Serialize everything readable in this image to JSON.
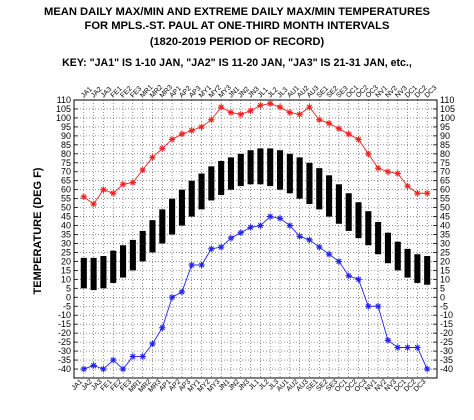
{
  "chart_data": {
    "type": "line",
    "title_lines": [
      "MEAN DAILY MAX/MIN AND EXTREME DAILY MAX/MIN TEMPERATURES",
      "FOR MPLS.-ST. PAUL AT ONE-THIRD MONTH INTERVALS",
      "(1820-2019 PERIOD OF RECORD)"
    ],
    "key_line": "KEY: \"JA1\" IS 1-10 JAN, \"JA2\" IS 11-20 JAN, \"JA3\" IS 21-31 JAN, etc.,",
    "ylabel": "TEMPERATURE (DEG F)",
    "ylim": [
      -45,
      110
    ],
    "yticks": [
      -40,
      -35,
      -30,
      -25,
      -20,
      -15,
      -10,
      -5,
      0,
      5,
      10,
      15,
      20,
      25,
      30,
      35,
      40,
      45,
      50,
      55,
      60,
      65,
      70,
      75,
      80,
      85,
      90,
      95,
      100,
      105,
      110
    ],
    "grid": true,
    "categories": [
      "JA1",
      "JA2",
      "JA3",
      "FE1",
      "FE2",
      "FE3",
      "MR1",
      "MR2",
      "MR3",
      "AP1",
      "AP2",
      "AP3",
      "MY1",
      "MY2",
      "MY3",
      "JN1",
      "JN2",
      "JN3",
      "JL1",
      "JL2",
      "JL3",
      "AU1",
      "AU2",
      "AU3",
      "SE1",
      "SE2",
      "SE3",
      "OC1",
      "OC2",
      "OC3",
      "NV1",
      "NV2",
      "NV3",
      "DC1",
      "DC2",
      "DC3"
    ],
    "series": [
      {
        "kind": "extreme-max",
        "color": "#ee2222",
        "values": [
          56,
          52,
          60,
          58,
          63,
          64,
          71,
          78,
          83,
          88,
          91,
          93,
          95,
          99,
          106,
          103,
          102,
          104,
          107,
          108,
          106,
          103,
          102,
          106,
          99,
          97,
          94,
          91,
          88,
          80,
          72,
          70,
          69,
          62,
          58,
          58
        ]
      },
      {
        "kind": "mean-max",
        "color": "#000000",
        "values": [
          22,
          22,
          23,
          26,
          29,
          32,
          37,
          43,
          49,
          55,
          60,
          65,
          69,
          73,
          76,
          78,
          80,
          82,
          83,
          83,
          82,
          80,
          78,
          75,
          72,
          68,
          63,
          58,
          53,
          48,
          42,
          36,
          31,
          27,
          24,
          23
        ]
      },
      {
        "kind": "mean-min",
        "color": "#000000",
        "values": [
          5,
          4,
          5,
          8,
          11,
          15,
          20,
          25,
          30,
          35,
          40,
          45,
          49,
          54,
          57,
          60,
          62,
          63,
          63,
          62,
          60,
          58,
          55,
          52,
          49,
          45,
          41,
          37,
          33,
          29,
          24,
          19,
          15,
          11,
          8,
          7
        ]
      },
      {
        "kind": "extreme-min",
        "color": "#2222ee",
        "values": [
          -40,
          -38,
          -40,
          -35,
          -40,
          -33,
          -33,
          -26,
          -17,
          0,
          3,
          18,
          18,
          27,
          28,
          33,
          36,
          39,
          40,
          45,
          44,
          40,
          34,
          32,
          28,
          24,
          20,
          12,
          10,
          -5,
          -5,
          -24,
          -28,
          -28,
          -28,
          -40
        ]
      }
    ]
  }
}
